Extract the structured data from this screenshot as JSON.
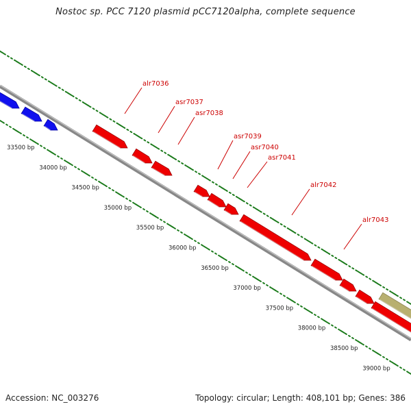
{
  "title": "Nostoc sp. PCC 7120 plasmid pCC7120alpha, complete sequence",
  "footer": {
    "accession": "Accession: NC_003276",
    "summary": "Topology: circular; Length: 408,101 bp; Genes: 386"
  },
  "colors": {
    "named_gene": "#ee0000",
    "other_gene": "#1010ee",
    "rna_feature": "#b8b070",
    "tick": "#1a7a1a",
    "backbone": "#888888",
    "label": "#cc0000"
  },
  "scale_labels": [
    "33500 bp",
    "34000 bp",
    "34500 bp",
    "35000 bp",
    "35500 bp",
    "36000 bp",
    "36500 bp",
    "37000 bp",
    "37500 bp",
    "38000 bp",
    "38500 bp",
    "39000 bp"
  ],
  "gene_labels": [
    "alr7036",
    "asr7037",
    "asr7038",
    "asr7039",
    "asr7040",
    "asr7041",
    "alr7042",
    "alr7043"
  ]
}
